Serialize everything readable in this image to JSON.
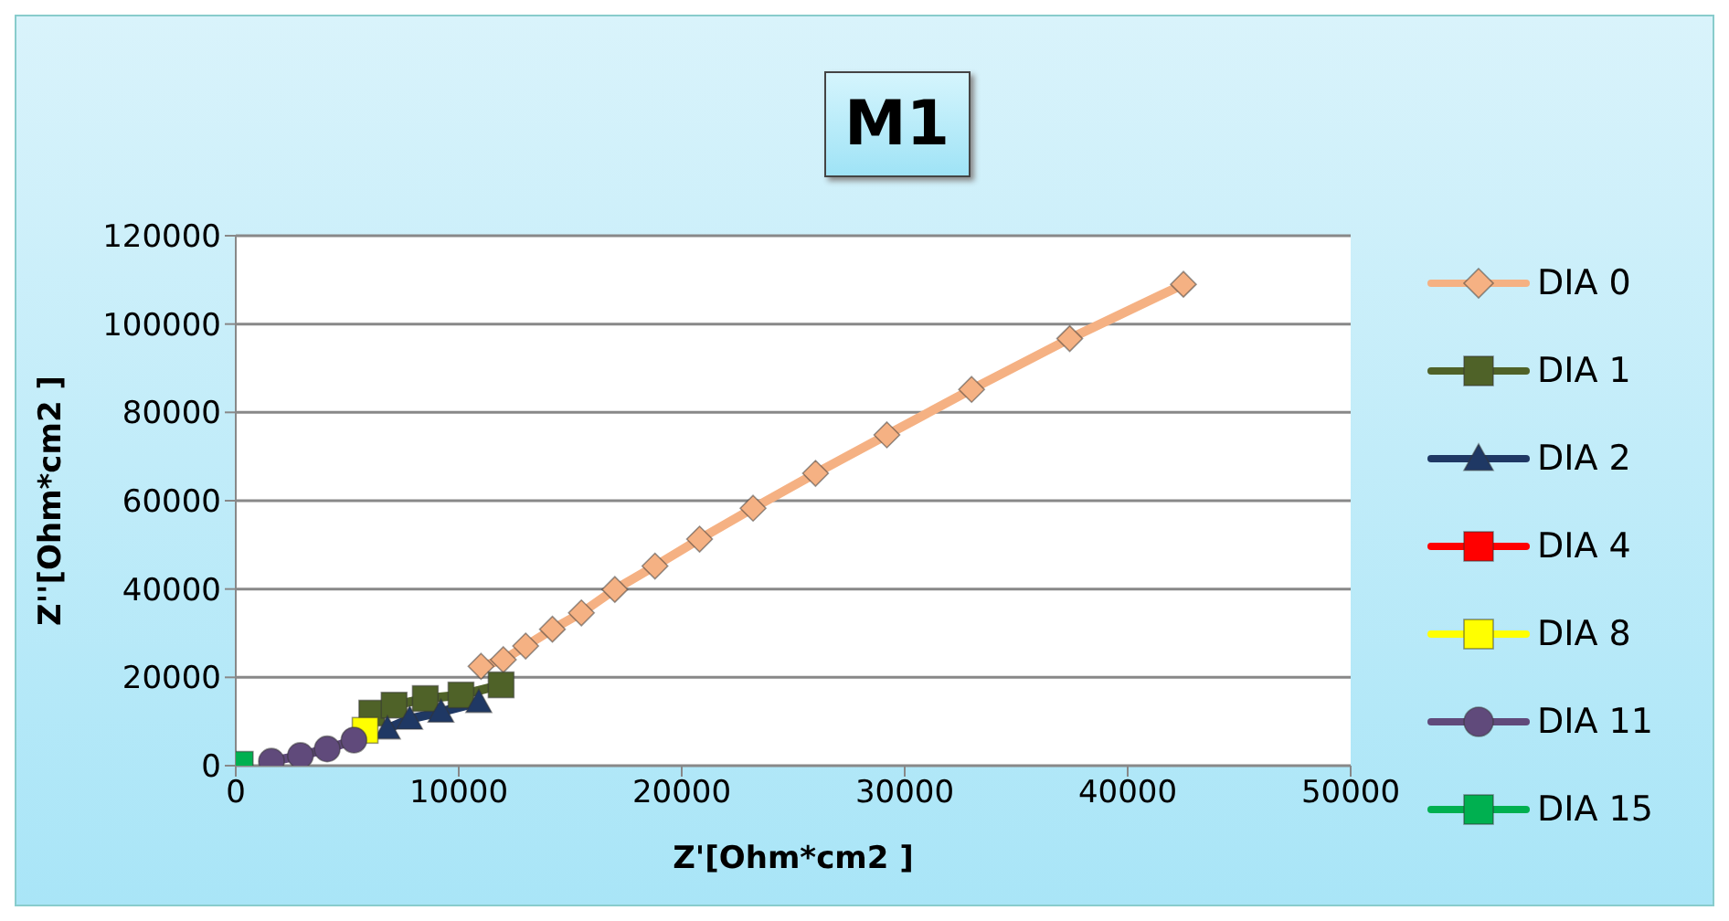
{
  "chart_data": {
    "type": "line",
    "title": "M1",
    "xlabel": "Z'[Ohm*cm2 ]",
    "ylabel": "Z''[Ohm*cm2 ]",
    "xlim": [
      0,
      50000
    ],
    "xticks": [
      0,
      10000,
      20000,
      30000,
      40000,
      50000
    ],
    "ylim": [
      0,
      120000
    ],
    "yticks": [
      0,
      20000,
      40000,
      60000,
      80000,
      100000,
      120000
    ],
    "grid": "y",
    "legend": "right",
    "series": [
      {
        "name": "DIA 0",
        "color": "#f5b183",
        "marker": "diamond",
        "x": [
          11000,
          12000,
          13000,
          14200,
          15500,
          17000,
          18800,
          20800,
          23200,
          26000,
          29200,
          33000,
          37400,
          42500
        ],
        "values": [
          22500,
          24000,
          27100,
          30900,
          34600,
          39900,
          45200,
          51300,
          58300,
          66200,
          74900,
          85200,
          96700,
          109000
        ]
      },
      {
        "name": "DIA 1",
        "color": "#4f6228",
        "marker": "square",
        "x": [
          6100,
          7100,
          8500,
          10100,
          11900
        ],
        "values": [
          11900,
          13700,
          15200,
          16000,
          18300
        ]
      },
      {
        "name": "DIA 2",
        "color": "#1f3864",
        "marker": "triangle",
        "x": [
          6800,
          7800,
          9200,
          10900
        ],
        "values": [
          8400,
          10600,
          12200,
          14400
        ]
      },
      {
        "name": "DIA 4",
        "color": "#ff0000",
        "marker": "square"
      },
      {
        "name": "DIA 8",
        "color": "#ffff00",
        "marker": "square",
        "x": [
          5800
        ],
        "values": [
          8000
        ]
      },
      {
        "name": "DIA 11",
        "color": "#604a7b",
        "marker": "circle",
        "x": [
          1600,
          2900,
          4100,
          5300
        ],
        "values": [
          1000,
          2300,
          3800,
          5800
        ]
      },
      {
        "name": "DIA 15",
        "color": "#00b050",
        "marker": "square",
        "x": [
          200
        ],
        "values": [
          300
        ]
      }
    ]
  }
}
